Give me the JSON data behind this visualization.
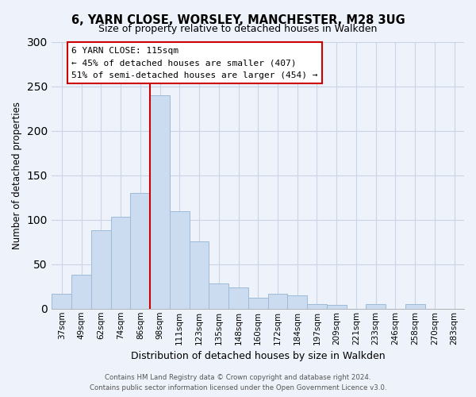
{
  "title": "6, YARN CLOSE, WORSLEY, MANCHESTER, M28 3UG",
  "subtitle": "Size of property relative to detached houses in Walkden",
  "xlabel": "Distribution of detached houses by size in Walkden",
  "ylabel": "Number of detached properties",
  "bar_color": "#ccdcf0",
  "bar_edge_color": "#9dbbd8",
  "categories": [
    "37sqm",
    "49sqm",
    "62sqm",
    "74sqm",
    "86sqm",
    "98sqm",
    "111sqm",
    "123sqm",
    "135sqm",
    "148sqm",
    "160sqm",
    "172sqm",
    "184sqm",
    "197sqm",
    "209sqm",
    "221sqm",
    "233sqm",
    "246sqm",
    "258sqm",
    "270sqm",
    "283sqm"
  ],
  "values": [
    17,
    38,
    88,
    103,
    130,
    240,
    110,
    76,
    28,
    24,
    12,
    17,
    15,
    5,
    4,
    0,
    5,
    0,
    5,
    0,
    0
  ],
  "ylim": [
    0,
    300
  ],
  "yticks": [
    0,
    50,
    100,
    150,
    200,
    250,
    300
  ],
  "vline_color": "#cc0000",
  "annotation_title": "6 YARN CLOSE: 115sqm",
  "annotation_line1": "← 45% of detached houses are smaller (407)",
  "annotation_line2": "51% of semi-detached houses are larger (454) →",
  "annotation_box_color": "#ffffff",
  "annotation_box_edge": "#cc0000",
  "footer_line1": "Contains HM Land Registry data © Crown copyright and database right 2024.",
  "footer_line2": "Contains public sector information licensed under the Open Government Licence v3.0.",
  "background_color": "#eef2fa",
  "grid_color": "#d0d8e8"
}
